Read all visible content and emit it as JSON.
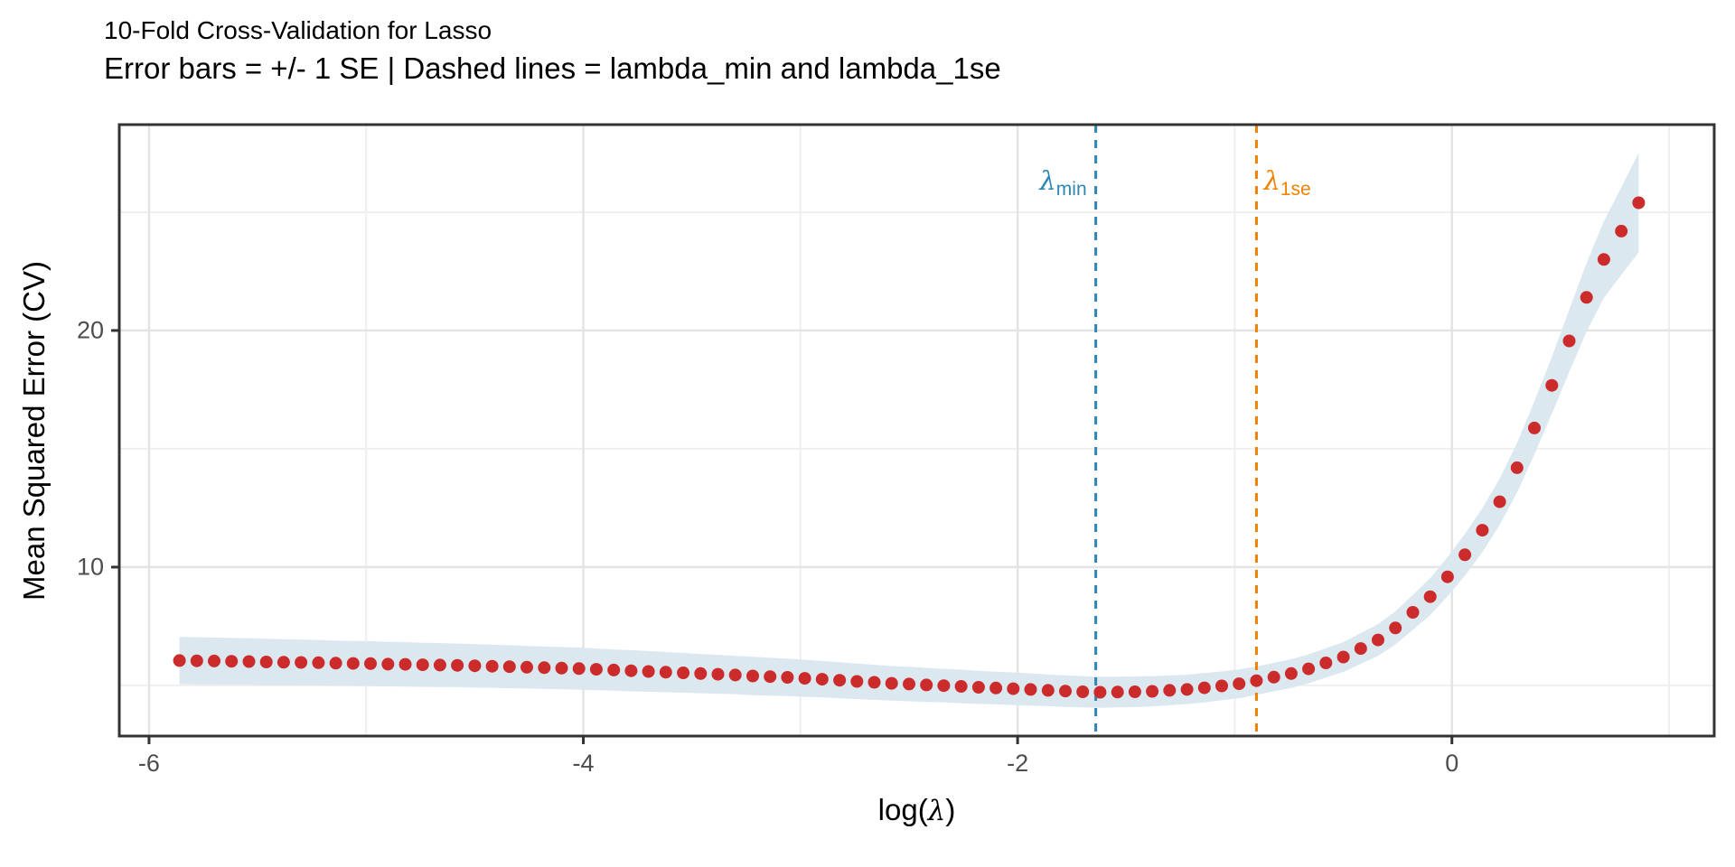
{
  "title": "10-Fold Cross-Validation for Lasso",
  "subtitle": "Error bars = +/- 1 SE | Dashed lines = lambda_min and lambda_1se",
  "annotations": {
    "lambda_min": {
      "symbol": "λ",
      "subscript": "min",
      "x": -1.64,
      "color": "#2E86B5"
    },
    "lambda_1se": {
      "symbol": "λ",
      "subscript": "1se",
      "x": -0.9,
      "color": "#F28100"
    }
  },
  "colors": {
    "point": "#CC2B2B",
    "ribbon": "#DCE8F0",
    "lambda_min_line": "#2E86B5",
    "lambda_1se_line": "#F28100",
    "grid_major": "#E4E4E4",
    "grid_minor": "#EFEFEF",
    "panel_border": "#333333",
    "tick_mark": "#333333",
    "tick_label": "#4D4D4D"
  },
  "chart_data": {
    "type": "scatter",
    "title": "10-Fold Cross-Validation for Lasso",
    "subtitle": "Error bars = +/- 1 SE | Dashed lines = lambda_min and lambda_1se",
    "xlabel": {
      "prefix": "log(",
      "symbol": "λ",
      "suffix": ")"
    },
    "ylabel": "Mean Squared Error (CV)",
    "xlim": [
      -6.137,
      1.208
    ],
    "ylim": [
      2.86,
      28.7
    ],
    "x_ticks": [
      -6,
      -4,
      -2,
      0
    ],
    "x_tick_labels": [
      "-6",
      "-4",
      "-2",
      "0"
    ],
    "x_minor_ticks": [
      -5,
      -3,
      -1,
      1
    ],
    "y_ticks": [
      10,
      20
    ],
    "y_tick_labels": [
      "10",
      "20"
    ],
    "y_minor_ticks": [
      5,
      15,
      25
    ],
    "grid": true,
    "legend_position": "none",
    "lambda_min_log": -1.64,
    "lambda_1se_log": -0.9,
    "x": [
      -5.86,
      -5.78,
      -5.7,
      -5.62,
      -5.54,
      -5.46,
      -5.38,
      -5.3,
      -5.22,
      -5.14,
      -5.06,
      -4.98,
      -4.9,
      -4.82,
      -4.74,
      -4.66,
      -4.58,
      -4.5,
      -4.42,
      -4.34,
      -4.26,
      -4.18,
      -4.1,
      -4.02,
      -3.94,
      -3.86,
      -3.78,
      -3.7,
      -3.62,
      -3.54,
      -3.46,
      -3.38,
      -3.3,
      -3.22,
      -3.14,
      -3.06,
      -2.98,
      -2.9,
      -2.82,
      -2.74,
      -2.66,
      -2.58,
      -2.5,
      -2.42,
      -2.34,
      -2.26,
      -2.18,
      -2.1,
      -2.02,
      -1.94,
      -1.86,
      -1.78,
      -1.7,
      -1.62,
      -1.54,
      -1.46,
      -1.38,
      -1.3,
      -1.22,
      -1.14,
      -1.06,
      -0.98,
      -0.9,
      -0.82,
      -0.74,
      -0.66,
      -0.58,
      -0.5,
      -0.42,
      -0.34,
      -0.26,
      -0.18,
      -0.1,
      -0.02,
      0.06,
      0.14,
      0.22,
      0.3,
      0.38,
      0.46,
      0.54,
      0.62,
      0.7,
      0.78,
      0.86
    ],
    "mse": [
      6.05,
      6.04,
      6.03,
      6.02,
      6.01,
      5.99,
      5.98,
      5.97,
      5.96,
      5.94,
      5.93,
      5.92,
      5.9,
      5.89,
      5.87,
      5.86,
      5.85,
      5.83,
      5.81,
      5.79,
      5.77,
      5.75,
      5.73,
      5.71,
      5.68,
      5.65,
      5.62,
      5.59,
      5.56,
      5.53,
      5.5,
      5.47,
      5.44,
      5.4,
      5.37,
      5.34,
      5.3,
      5.26,
      5.22,
      5.17,
      5.13,
      5.09,
      5.06,
      5.02,
      4.99,
      4.96,
      4.92,
      4.89,
      4.86,
      4.83,
      4.79,
      4.76,
      4.73,
      4.71,
      4.72,
      4.73,
      4.75,
      4.79,
      4.83,
      4.9,
      4.98,
      5.07,
      5.2,
      5.35,
      5.5,
      5.7,
      5.95,
      6.2,
      6.56,
      6.92,
      7.43,
      8.09,
      8.75,
      9.59,
      10.52,
      11.56,
      12.76,
      14.2,
      15.88,
      17.68,
      19.56,
      21.4,
      23.0,
      24.2,
      25.4
    ],
    "se": [
      1.0,
      1.0,
      0.99,
      0.99,
      0.98,
      0.98,
      0.97,
      0.97,
      0.96,
      0.96,
      0.95,
      0.95,
      0.94,
      0.94,
      0.93,
      0.93,
      0.92,
      0.92,
      0.91,
      0.91,
      0.9,
      0.9,
      0.89,
      0.89,
      0.88,
      0.87,
      0.87,
      0.86,
      0.85,
      0.84,
      0.83,
      0.82,
      0.81,
      0.81,
      0.8,
      0.79,
      0.78,
      0.77,
      0.76,
      0.75,
      0.74,
      0.73,
      0.73,
      0.72,
      0.71,
      0.71,
      0.7,
      0.69,
      0.69,
      0.68,
      0.67,
      0.67,
      0.66,
      0.66,
      0.65,
      0.65,
      0.64,
      0.63,
      0.62,
      0.62,
      0.61,
      0.61,
      0.6,
      0.6,
      0.61,
      0.61,
      0.62,
      0.63,
      0.65,
      0.67,
      0.7,
      0.74,
      0.78,
      0.83,
      0.88,
      0.93,
      0.98,
      1.05,
      1.12,
      1.2,
      1.32,
      1.45,
      1.62,
      1.85,
      2.1
    ]
  }
}
